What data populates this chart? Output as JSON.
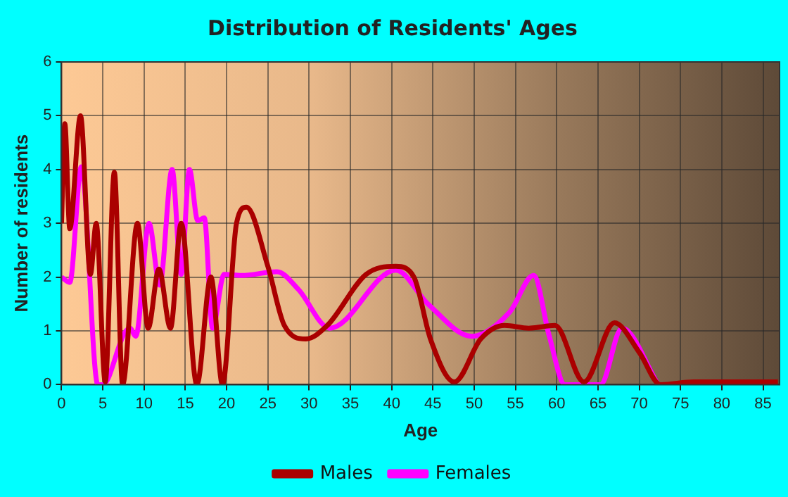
{
  "chart_data": {
    "type": "line",
    "title": "Distribution of Residents' Ages",
    "xlabel": "Age",
    "ylabel": "Number of residents",
    "xlim": [
      0,
      87
    ],
    "xticks": [
      0,
      5,
      10,
      15,
      20,
      25,
      30,
      35,
      40,
      45,
      50,
      55,
      60,
      65,
      70,
      75,
      80,
      85
    ],
    "ylim": [
      0,
      6
    ],
    "yticks": [
      0,
      1,
      2,
      3,
      4,
      5,
      6
    ],
    "grid": true,
    "legend": "bottom",
    "marker": "none",
    "series": [
      {
        "name": "Males",
        "color": "#aa0000",
        "x": [
          0,
          0.4,
          1,
          2.3,
          3.5,
          4.2,
          5.3,
          6.4,
          7.4,
          9.2,
          10.5,
          11.8,
          13.2,
          14.5,
          16.4,
          18.1,
          19.5,
          21.2,
          22.4,
          25,
          27,
          29.6,
          32.2,
          36.9,
          40.5,
          42.7,
          44.7,
          47.6,
          50.8,
          53.7,
          56.6,
          59.8,
          63.3,
          67,
          70,
          72.6,
          76.6,
          86.8
        ],
        "values": [
          3.0,
          4.85,
          2.9,
          5.0,
          2.05,
          3.0,
          0.05,
          3.95,
          0,
          3.0,
          1.05,
          2.15,
          1.05,
          3.0,
          0,
          2.0,
          0,
          3.0,
          3.3,
          2.2,
          1.1,
          0.85,
          1.1,
          2.05,
          2.2,
          2.0,
          0.85,
          0.05,
          0.85,
          1.1,
          1.05,
          1.1,
          0.05,
          1.15,
          0.6,
          0,
          0.05,
          0.05
        ]
      },
      {
        "name": "Females",
        "color": "#ff00ff",
        "x": [
          0,
          1,
          2.4,
          4.4,
          5,
          7.6,
          8.3,
          9,
          10.6,
          11.9,
          13.4,
          14.5,
          15.5,
          16.5,
          17.3,
          18.3,
          19.7,
          21.8,
          26.1,
          28.7,
          32.5,
          40.5,
          44.4,
          49.7,
          54.3,
          57.2,
          59.1,
          61,
          65.3,
          67.9,
          72.3
        ],
        "values": [
          2.0,
          1.9,
          4.05,
          0,
          0,
          0.95,
          1.05,
          0.9,
          3.0,
          1.85,
          4.0,
          2.05,
          4.0,
          3.05,
          3.1,
          1.05,
          2.05,
          2.03,
          2.1,
          1.77,
          1.05,
          2.13,
          1.5,
          0.9,
          1.35,
          2.03,
          0.9,
          0,
          0,
          1.05,
          0
        ]
      }
    ]
  }
}
